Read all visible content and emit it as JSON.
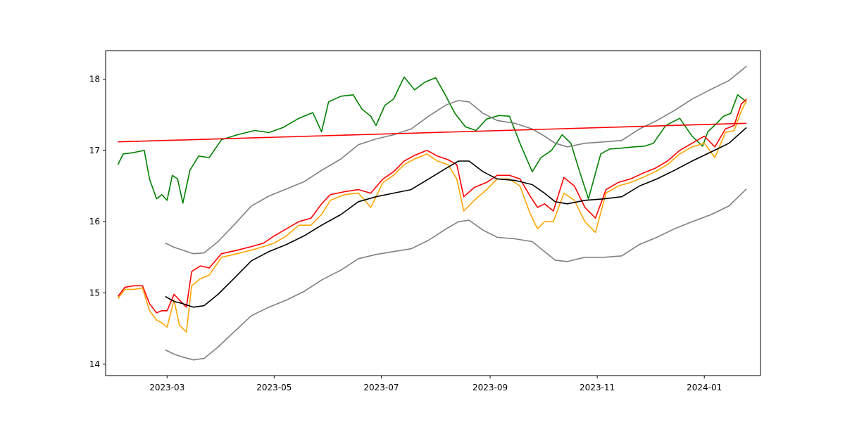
{
  "chart_data": {
    "type": "line",
    "title": "",
    "xlabel": "",
    "ylabel": "",
    "xlim": [
      "2023-01-25",
      "2024-02-02"
    ],
    "ylim": [
      13.84,
      18.4
    ],
    "grid": false,
    "legend": "none",
    "x_ticks": [
      {
        "value": "2023-03-01",
        "label": "2023-03"
      },
      {
        "value": "2023-05-01",
        "label": "2023-05"
      },
      {
        "value": "2023-07-01",
        "label": "2023-07"
      },
      {
        "value": "2023-09-01",
        "label": "2023-09"
      },
      {
        "value": "2023-11-01",
        "label": "2023-11"
      },
      {
        "value": "2024-01-01",
        "label": "2024-01"
      }
    ],
    "y_ticks": [
      {
        "value": 14,
        "label": "14"
      },
      {
        "value": 15,
        "label": "15"
      },
      {
        "value": 16,
        "label": "16"
      },
      {
        "value": 17,
        "label": "17"
      },
      {
        "value": 18,
        "label": "18"
      }
    ],
    "series": [
      {
        "color": "#008000",
        "x": [
          "2023-02-01",
          "2023-02-04",
          "2023-02-10",
          "2023-02-16",
          "2023-02-19",
          "2023-02-23",
          "2023-02-26",
          "2023-03-01",
          "2023-03-04",
          "2023-03-07",
          "2023-03-10",
          "2023-03-14",
          "2023-03-19",
          "2023-03-25",
          "2023-04-01",
          "2023-04-10",
          "2023-04-20",
          "2023-04-28",
          "2023-05-06",
          "2023-05-15",
          "2023-05-23",
          "2023-05-28",
          "2023-06-01",
          "2023-06-08",
          "2023-06-15",
          "2023-06-20",
          "2023-06-25",
          "2023-06-28",
          "2023-07-03",
          "2023-07-08",
          "2023-07-14",
          "2023-07-20",
          "2023-07-26",
          "2023-08-01",
          "2023-08-06",
          "2023-08-12",
          "2023-08-18",
          "2023-08-24",
          "2023-08-30",
          "2023-09-06",
          "2023-09-12",
          "2023-09-18",
          "2023-09-25",
          "2023-09-30",
          "2023-10-06",
          "2023-10-12",
          "2023-10-17",
          "2023-10-22",
          "2023-10-27",
          "2023-11-03",
          "2023-11-08",
          "2023-11-14",
          "2023-11-22",
          "2023-11-28",
          "2023-12-03",
          "2023-12-10",
          "2023-12-18",
          "2023-12-25",
          "2023-12-31",
          "2024-01-03",
          "2024-01-08",
          "2024-01-12",
          "2024-01-16",
          "2024-01-20",
          "2024-01-25"
        ],
        "values": [
          16.8,
          16.95,
          16.97,
          17.0,
          16.6,
          16.32,
          16.38,
          16.3,
          16.65,
          16.6,
          16.26,
          16.72,
          16.92,
          16.9,
          17.15,
          17.22,
          17.28,
          17.25,
          17.32,
          17.45,
          17.53,
          17.26,
          17.68,
          17.76,
          17.78,
          17.58,
          17.48,
          17.35,
          17.63,
          17.72,
          18.03,
          17.85,
          17.96,
          18.02,
          17.8,
          17.52,
          17.33,
          17.28,
          17.44,
          17.49,
          17.48,
          17.1,
          16.7,
          16.9,
          17.0,
          17.22,
          17.1,
          16.7,
          16.32,
          16.95,
          17.02,
          17.03,
          17.05,
          17.06,
          17.1,
          17.35,
          17.45,
          17.2,
          17.06,
          17.26,
          17.38,
          17.48,
          17.52,
          17.78,
          17.68
        ]
      },
      {
        "color": "#ff0000",
        "x": [
          "2023-02-01",
          "2023-02-05",
          "2023-02-10",
          "2023-02-15",
          "2023-02-19",
          "2023-02-23",
          "2023-02-26",
          "2023-03-01",
          "2023-03-05",
          "2023-03-08",
          "2023-03-12",
          "2023-03-15",
          "2023-03-20",
          "2023-03-25",
          "2023-04-01",
          "2023-04-10",
          "2023-04-18",
          "2023-04-25",
          "2023-05-01",
          "2023-05-08",
          "2023-05-15",
          "2023-05-22",
          "2023-05-28",
          "2023-06-02",
          "2023-06-10",
          "2023-06-18",
          "2023-06-25",
          "2023-07-02",
          "2023-07-08",
          "2023-07-14",
          "2023-07-20",
          "2023-07-27",
          "2023-08-02",
          "2023-08-08",
          "2023-08-13",
          "2023-08-17",
          "2023-08-23",
          "2023-08-30",
          "2023-09-05",
          "2023-09-12",
          "2023-09-18",
          "2023-09-24",
          "2023-09-28",
          "2023-10-02",
          "2023-10-07",
          "2023-10-13",
          "2023-10-19",
          "2023-10-25",
          "2023-10-31",
          "2023-11-06",
          "2023-11-13",
          "2023-11-20",
          "2023-11-27",
          "2023-12-04",
          "2023-12-11",
          "2023-12-18",
          "2023-12-25",
          "2024-01-01",
          "2024-01-07",
          "2024-01-13",
          "2024-01-18",
          "2024-01-22",
          "2024-01-25"
        ],
        "values": [
          14.95,
          15.08,
          15.1,
          15.1,
          14.85,
          14.72,
          14.75,
          14.75,
          14.98,
          14.9,
          14.8,
          15.3,
          15.38,
          15.35,
          15.55,
          15.6,
          15.65,
          15.7,
          15.8,
          15.9,
          16.0,
          16.05,
          16.25,
          16.38,
          16.42,
          16.45,
          16.4,
          16.6,
          16.7,
          16.85,
          16.93,
          17.0,
          16.92,
          16.87,
          16.8,
          16.35,
          16.48,
          16.55,
          16.65,
          16.65,
          16.6,
          16.35,
          16.2,
          16.25,
          16.15,
          16.62,
          16.5,
          16.2,
          16.05,
          16.45,
          16.55,
          16.6,
          16.68,
          16.75,
          16.85,
          17.0,
          17.1,
          17.2,
          17.05,
          17.3,
          17.35,
          17.65,
          17.72
        ]
      },
      {
        "color": "#ffa500",
        "x": [
          "2023-02-01",
          "2023-02-05",
          "2023-02-10",
          "2023-02-15",
          "2023-02-19",
          "2023-02-23",
          "2023-02-26",
          "2023-03-01",
          "2023-03-05",
          "2023-03-08",
          "2023-03-12",
          "2023-03-15",
          "2023-03-20",
          "2023-03-25",
          "2023-04-01",
          "2023-04-10",
          "2023-04-18",
          "2023-04-25",
          "2023-05-01",
          "2023-05-08",
          "2023-05-15",
          "2023-05-22",
          "2023-05-28",
          "2023-06-02",
          "2023-06-10",
          "2023-06-18",
          "2023-06-25",
          "2023-07-02",
          "2023-07-08",
          "2023-07-14",
          "2023-07-20",
          "2023-07-27",
          "2023-08-02",
          "2023-08-08",
          "2023-08-13",
          "2023-08-17",
          "2023-08-23",
          "2023-08-30",
          "2023-09-05",
          "2023-09-12",
          "2023-09-18",
          "2023-09-24",
          "2023-09-28",
          "2023-10-02",
          "2023-10-07",
          "2023-10-13",
          "2023-10-19",
          "2023-10-25",
          "2023-10-31",
          "2023-11-06",
          "2023-11-13",
          "2023-11-20",
          "2023-11-27",
          "2023-12-04",
          "2023-12-11",
          "2023-12-18",
          "2023-12-25",
          "2024-01-01",
          "2024-01-07",
          "2024-01-13",
          "2024-01-18",
          "2024-01-22",
          "2024-01-25"
        ],
        "values": [
          14.92,
          15.05,
          15.05,
          15.07,
          14.75,
          14.62,
          14.58,
          14.52,
          14.9,
          14.55,
          14.45,
          15.1,
          15.2,
          15.25,
          15.5,
          15.55,
          15.6,
          15.65,
          15.7,
          15.8,
          15.95,
          15.95,
          16.1,
          16.3,
          16.38,
          16.4,
          16.2,
          16.55,
          16.65,
          16.8,
          16.88,
          16.95,
          16.85,
          16.8,
          16.6,
          16.15,
          16.3,
          16.45,
          16.6,
          16.6,
          16.5,
          16.1,
          15.9,
          16.0,
          16.0,
          16.4,
          16.3,
          16.0,
          15.85,
          16.4,
          16.5,
          16.55,
          16.62,
          16.7,
          16.8,
          16.95,
          17.05,
          17.1,
          16.9,
          17.25,
          17.28,
          17.55,
          17.7
        ]
      },
      {
        "color": "#000000",
        "x": [
          "2023-02-28",
          "2023-03-05",
          "2023-03-10",
          "2023-03-16",
          "2023-03-22",
          "2023-03-30",
          "2023-04-08",
          "2023-04-18",
          "2023-04-28",
          "2023-05-08",
          "2023-05-18",
          "2023-05-28",
          "2023-06-08",
          "2023-06-18",
          "2023-06-28",
          "2023-07-08",
          "2023-07-18",
          "2023-07-28",
          "2023-08-07",
          "2023-08-14",
          "2023-08-20",
          "2023-08-28",
          "2023-09-05",
          "2023-09-15",
          "2023-09-25",
          "2023-10-02",
          "2023-10-08",
          "2023-10-15",
          "2023-10-25",
          "2023-11-05",
          "2023-11-15",
          "2023-11-25",
          "2023-12-05",
          "2023-12-15",
          "2023-12-25",
          "2024-01-05",
          "2024-01-15",
          "2024-01-25"
        ],
        "values": [
          14.95,
          14.88,
          14.85,
          14.8,
          14.82,
          14.98,
          15.2,
          15.45,
          15.58,
          15.68,
          15.8,
          15.95,
          16.1,
          16.28,
          16.35,
          16.4,
          16.45,
          16.6,
          16.75,
          16.85,
          16.85,
          16.7,
          16.6,
          16.58,
          16.52,
          16.4,
          16.28,
          16.25,
          16.3,
          16.32,
          16.35,
          16.5,
          16.6,
          16.72,
          16.85,
          16.98,
          17.1,
          17.32
        ]
      },
      {
        "color": "#808080",
        "x": [
          "2023-02-28",
          "2023-03-05",
          "2023-03-10",
          "2023-03-16",
          "2023-03-22",
          "2023-03-30",
          "2023-04-08",
          "2023-04-18",
          "2023-04-28",
          "2023-05-08",
          "2023-05-18",
          "2023-05-28",
          "2023-06-08",
          "2023-06-18",
          "2023-06-28",
          "2023-07-08",
          "2023-07-18",
          "2023-07-28",
          "2023-08-07",
          "2023-08-14",
          "2023-08-20",
          "2023-08-28",
          "2023-09-05",
          "2023-09-15",
          "2023-09-25",
          "2023-10-02",
          "2023-10-08",
          "2023-10-15",
          "2023-10-25",
          "2023-11-05",
          "2023-11-15",
          "2023-11-25",
          "2023-12-05",
          "2023-12-15",
          "2023-12-25",
          "2024-01-05",
          "2024-01-15",
          "2024-01-25"
        ],
        "values": [
          15.7,
          15.64,
          15.6,
          15.55,
          15.56,
          15.72,
          15.95,
          16.22,
          16.36,
          16.46,
          16.56,
          16.72,
          16.88,
          17.08,
          17.16,
          17.22,
          17.3,
          17.48,
          17.64,
          17.7,
          17.68,
          17.52,
          17.42,
          17.38,
          17.3,
          17.2,
          17.1,
          17.05,
          17.1,
          17.12,
          17.14,
          17.3,
          17.42,
          17.56,
          17.72,
          17.86,
          17.98,
          18.18
        ]
      },
      {
        "color": "#808080",
        "x": [
          "2023-02-28",
          "2023-03-05",
          "2023-03-10",
          "2023-03-16",
          "2023-03-22",
          "2023-03-30",
          "2023-04-08",
          "2023-04-18",
          "2023-04-28",
          "2023-05-08",
          "2023-05-18",
          "2023-05-28",
          "2023-06-08",
          "2023-06-18",
          "2023-06-28",
          "2023-07-08",
          "2023-07-18",
          "2023-07-28",
          "2023-08-07",
          "2023-08-14",
          "2023-08-20",
          "2023-08-28",
          "2023-09-05",
          "2023-09-15",
          "2023-09-25",
          "2023-10-02",
          "2023-10-08",
          "2023-10-15",
          "2023-10-25",
          "2023-11-05",
          "2023-11-15",
          "2023-11-25",
          "2023-12-05",
          "2023-12-15",
          "2023-12-25",
          "2024-01-05",
          "2024-01-15",
          "2024-01-25"
        ],
        "values": [
          14.2,
          14.14,
          14.1,
          14.06,
          14.08,
          14.24,
          14.45,
          14.68,
          14.8,
          14.9,
          15.02,
          15.18,
          15.32,
          15.48,
          15.54,
          15.58,
          15.62,
          15.74,
          15.9,
          16.0,
          16.02,
          15.88,
          15.78,
          15.76,
          15.72,
          15.58,
          15.46,
          15.44,
          15.5,
          15.5,
          15.52,
          15.68,
          15.78,
          15.9,
          16.0,
          16.1,
          16.22,
          16.46
        ]
      },
      {
        "color": "#ff0000",
        "x": [
          "2023-02-01",
          "2024-01-25"
        ],
        "values": [
          17.12,
          17.38
        ]
      }
    ]
  }
}
